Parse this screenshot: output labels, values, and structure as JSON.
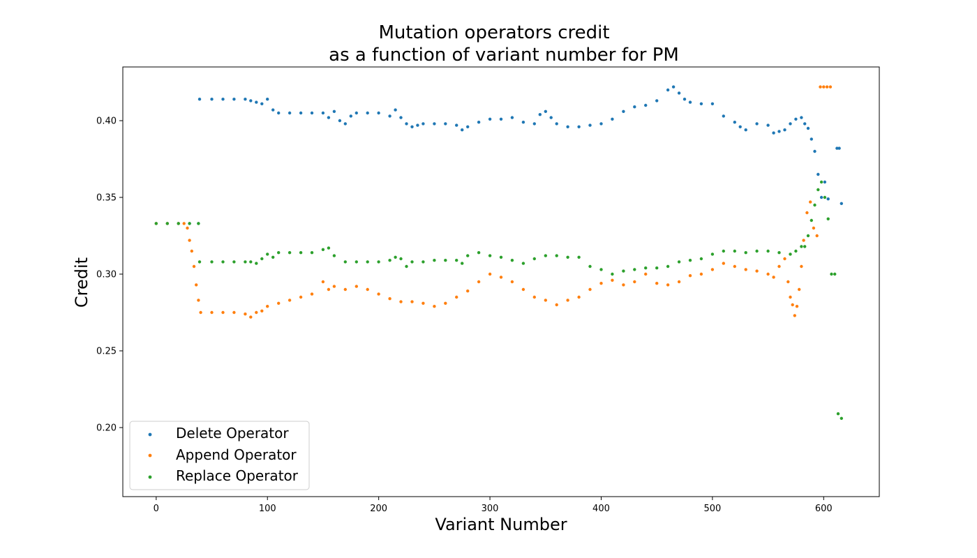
{
  "chart_data": {
    "type": "scatter",
    "title_line1": "Mutation operators credit",
    "title_line2": "as a function of variant number for PM",
    "xlabel": "Variant Number",
    "ylabel": "Credit",
    "xlim": [
      -30,
      650
    ],
    "ylim": [
      0.155,
      0.435
    ],
    "xticks": [
      0,
      100,
      200,
      300,
      400,
      500,
      600
    ],
    "yticks": [
      0.2,
      0.25,
      0.3,
      0.35,
      0.4
    ],
    "legend_position": "lower-left",
    "series": [
      {
        "name": "Delete Operator",
        "color": "#1f77b4",
        "x": [
          0,
          10,
          20,
          30,
          38,
          39,
          50,
          60,
          70,
          80,
          85,
          90,
          95,
          100,
          105,
          110,
          120,
          130,
          140,
          150,
          155,
          160,
          165,
          170,
          175,
          180,
          190,
          200,
          210,
          215,
          220,
          225,
          230,
          235,
          240,
          250,
          260,
          270,
          275,
          280,
          290,
          300,
          310,
          320,
          330,
          340,
          345,
          350,
          355,
          360,
          370,
          380,
          390,
          400,
          410,
          420,
          430,
          440,
          450,
          460,
          465,
          470,
          475,
          480,
          490,
          500,
          510,
          520,
          525,
          530,
          540,
          550,
          555,
          560,
          565,
          570,
          575,
          580,
          583,
          586,
          589,
          592,
          595,
          598,
          601,
          604,
          612,
          614,
          616
        ],
        "y": [
          0.333,
          0.333,
          0.333,
          0.333,
          0.333,
          0.414,
          0.414,
          0.414,
          0.414,
          0.414,
          0.413,
          0.412,
          0.411,
          0.414,
          0.407,
          0.405,
          0.405,
          0.405,
          0.405,
          0.405,
          0.402,
          0.406,
          0.4,
          0.398,
          0.403,
          0.405,
          0.405,
          0.405,
          0.403,
          0.407,
          0.402,
          0.398,
          0.396,
          0.397,
          0.398,
          0.398,
          0.398,
          0.397,
          0.394,
          0.396,
          0.399,
          0.401,
          0.401,
          0.402,
          0.399,
          0.398,
          0.404,
          0.406,
          0.402,
          0.398,
          0.396,
          0.396,
          0.397,
          0.398,
          0.401,
          0.406,
          0.409,
          0.41,
          0.413,
          0.42,
          0.422,
          0.418,
          0.414,
          0.412,
          0.411,
          0.411,
          0.403,
          0.399,
          0.396,
          0.394,
          0.398,
          0.397,
          0.392,
          0.393,
          0.394,
          0.398,
          0.401,
          0.402,
          0.398,
          0.395,
          0.388,
          0.38,
          0.365,
          0.35,
          0.36,
          0.349,
          0.382,
          0.382,
          0.346
        ]
      },
      {
        "name": "Append Operator",
        "color": "#ff7f0e",
        "x": [
          0,
          10,
          20,
          25,
          28,
          30,
          32,
          34,
          36,
          38,
          40,
          50,
          60,
          70,
          80,
          85,
          90,
          95,
          100,
          110,
          120,
          130,
          140,
          150,
          155,
          160,
          170,
          180,
          190,
          200,
          210,
          220,
          230,
          240,
          250,
          260,
          270,
          280,
          290,
          300,
          310,
          320,
          330,
          340,
          350,
          360,
          370,
          380,
          390,
          400,
          410,
          420,
          430,
          440,
          450,
          460,
          470,
          480,
          490,
          500,
          510,
          520,
          530,
          540,
          550,
          555,
          560,
          565,
          568,
          570,
          572,
          574,
          576,
          578,
          580,
          582,
          585,
          588,
          591,
          594,
          597,
          600,
          603,
          606
        ],
        "y": [
          0.333,
          0.333,
          0.333,
          0.333,
          0.33,
          0.322,
          0.315,
          0.305,
          0.293,
          0.283,
          0.275,
          0.275,
          0.275,
          0.275,
          0.274,
          0.272,
          0.275,
          0.276,
          0.279,
          0.281,
          0.283,
          0.285,
          0.287,
          0.295,
          0.29,
          0.292,
          0.29,
          0.292,
          0.29,
          0.287,
          0.284,
          0.282,
          0.282,
          0.281,
          0.279,
          0.281,
          0.285,
          0.289,
          0.295,
          0.3,
          0.298,
          0.295,
          0.29,
          0.285,
          0.283,
          0.28,
          0.283,
          0.285,
          0.29,
          0.294,
          0.296,
          0.293,
          0.295,
          0.3,
          0.294,
          0.293,
          0.295,
          0.299,
          0.3,
          0.303,
          0.307,
          0.305,
          0.303,
          0.302,
          0.3,
          0.298,
          0.305,
          0.31,
          0.295,
          0.285,
          0.28,
          0.273,
          0.279,
          0.29,
          0.305,
          0.322,
          0.34,
          0.347,
          0.33,
          0.325,
          0.422,
          0.422,
          0.422,
          0.422
        ]
      },
      {
        "name": "Replace Operator",
        "color": "#2ca02c",
        "x": [
          0,
          10,
          20,
          30,
          38,
          39,
          50,
          60,
          70,
          80,
          85,
          90,
          95,
          100,
          105,
          110,
          120,
          130,
          140,
          150,
          155,
          160,
          170,
          180,
          190,
          200,
          210,
          215,
          220,
          225,
          230,
          240,
          250,
          260,
          270,
          275,
          280,
          290,
          300,
          310,
          320,
          330,
          340,
          350,
          360,
          370,
          380,
          390,
          400,
          410,
          420,
          430,
          440,
          450,
          460,
          470,
          480,
          490,
          500,
          510,
          520,
          530,
          540,
          550,
          560,
          570,
          575,
          580,
          583,
          586,
          589,
          592,
          595,
          598,
          601,
          604,
          607,
          610,
          613,
          616
        ],
        "y": [
          0.333,
          0.333,
          0.333,
          0.333,
          0.333,
          0.308,
          0.308,
          0.308,
          0.308,
          0.308,
          0.308,
          0.307,
          0.31,
          0.313,
          0.311,
          0.314,
          0.314,
          0.314,
          0.314,
          0.316,
          0.317,
          0.312,
          0.308,
          0.308,
          0.308,
          0.308,
          0.309,
          0.311,
          0.31,
          0.305,
          0.308,
          0.308,
          0.309,
          0.309,
          0.309,
          0.307,
          0.312,
          0.314,
          0.312,
          0.311,
          0.309,
          0.307,
          0.31,
          0.312,
          0.312,
          0.311,
          0.311,
          0.305,
          0.303,
          0.3,
          0.302,
          0.303,
          0.304,
          0.304,
          0.305,
          0.308,
          0.309,
          0.31,
          0.313,
          0.315,
          0.315,
          0.314,
          0.315,
          0.315,
          0.314,
          0.313,
          0.315,
          0.318,
          0.318,
          0.325,
          0.335,
          0.345,
          0.355,
          0.36,
          0.35,
          0.336,
          0.3,
          0.3,
          0.209,
          0.206
        ]
      }
    ]
  }
}
